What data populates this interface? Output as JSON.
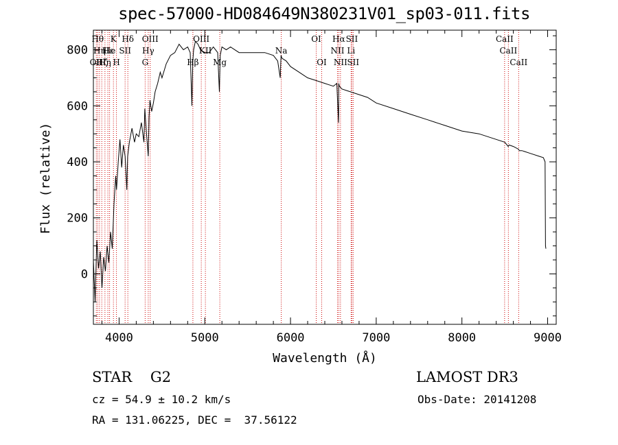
{
  "chart_data": {
    "type": "line",
    "title": "spec-57000-HD084649N380231V01_sp03-011.fits",
    "xlabel": "Wavelength (Å)",
    "ylabel": "Flux (relative)",
    "xlim": [
      3700,
      9100
    ],
    "ylim": [
      -180,
      870
    ],
    "xticks": [
      4000,
      5000,
      6000,
      7000,
      8000,
      9000
    ],
    "yticks": [
      0,
      200,
      400,
      600,
      800
    ],
    "grid": false,
    "series": [
      {
        "x": [
          3700,
          3720,
          3740,
          3760,
          3780,
          3800,
          3820,
          3840,
          3860,
          3880,
          3900,
          3920,
          3940,
          3960,
          3970,
          3990,
          4010,
          4030,
          4050,
          4070,
          4090,
          4100,
          4120,
          4150,
          4180,
          4200,
          4230,
          4260,
          4290,
          4300,
          4320,
          4340,
          4350,
          4360,
          4380,
          4400,
          4420,
          4450,
          4480,
          4500,
          4550,
          4600,
          4650,
          4700,
          4750,
          4800,
          4830,
          4850,
          4860,
          4870,
          4890,
          4920,
          4950,
          5000,
          5050,
          5100,
          5150,
          5170,
          5180,
          5200,
          5250,
          5300,
          5350,
          5400,
          5500,
          5600,
          5700,
          5800,
          5850,
          5880,
          5890,
          5900,
          5950,
          6000,
          6100,
          6200,
          6300,
          6400,
          6450,
          6500,
          6540,
          6560,
          6563,
          6570,
          6600,
          6700,
          6800,
          6900,
          7000,
          7200,
          7400,
          7600,
          7800,
          8000,
          8200,
          8400,
          8500,
          8540,
          8550,
          8600,
          8660,
          8670,
          8700,
          8800,
          8900,
          8950,
          8970,
          8975,
          8980
        ],
        "y": [
          50,
          -100,
          120,
          20,
          80,
          -50,
          60,
          10,
          100,
          40,
          150,
          90,
          250,
          350,
          300,
          400,
          480,
          380,
          460,
          420,
          300,
          420,
          470,
          520,
          470,
          500,
          490,
          540,
          470,
          590,
          500,
          420,
          560,
          620,
          580,
          610,
          650,
          680,
          720,
          700,
          750,
          780,
          790,
          820,
          800,
          810,
          790,
          600,
          760,
          800,
          830,
          820,
          800,
          790,
          790,
          810,
          790,
          650,
          780,
          810,
          800,
          810,
          800,
          790,
          790,
          790,
          790,
          780,
          760,
          700,
          780,
          770,
          760,
          740,
          720,
          700,
          690,
          680,
          675,
          670,
          680,
          540,
          680,
          670,
          660,
          650,
          640,
          630,
          610,
          590,
          570,
          550,
          530,
          510,
          500,
          480,
          470,
          455,
          460,
          455,
          445,
          440,
          440,
          430,
          420,
          415,
          400,
          100,
          90
        ]
      }
    ],
    "lines": [
      {
        "x": 3734,
        "label": "OII",
        "row": 3
      },
      {
        "x": 3750,
        "label": "Hθ",
        "row": 1
      },
      {
        "x": 3771,
        "label": "Hη",
        "row": 2
      },
      {
        "x": 3798,
        "label": "Hζ",
        "row": 3
      },
      {
        "x": 3835,
        "label": "Hη",
        "row": 3
      },
      {
        "x": 3869,
        "label": "Hε",
        "row": 2
      },
      {
        "x": 3889,
        "label": "He",
        "row": 2
      },
      {
        "x": 3934,
        "label": "K",
        "row": 1
      },
      {
        "x": 3969,
        "label": "H",
        "row": 3
      },
      {
        "x": 4070,
        "label": "SII",
        "row": 2
      },
      {
        "x": 4102,
        "label": "Hδ",
        "row": 1
      },
      {
        "x": 4304,
        "label": "G",
        "row": 3
      },
      {
        "x": 4340,
        "label": "Hγ",
        "row": 2
      },
      {
        "x": 4363,
        "label": "OIII",
        "row": 1
      },
      {
        "x": 4861,
        "label": "Hβ",
        "row": 3
      },
      {
        "x": 4959,
        "label": "OIII",
        "row": 1
      },
      {
        "x": 5007,
        "label": "KII",
        "row": 2
      },
      {
        "x": 5175,
        "label": "Mg",
        "row": 3
      },
      {
        "x": 5892,
        "label": "Na",
        "row": 2
      },
      {
        "x": 6300,
        "label": "OI",
        "row": 1
      },
      {
        "x": 6364,
        "label": "OI",
        "row": 3
      },
      {
        "x": 6548,
        "label": "NII",
        "row": 2
      },
      {
        "x": 6563,
        "label": "Hα",
        "row": 1
      },
      {
        "x": 6583,
        "label": "NII",
        "row": 3
      },
      {
        "x": 6707,
        "label": "Li",
        "row": 2
      },
      {
        "x": 6716,
        "label": "SII",
        "row": 1
      },
      {
        "x": 6731,
        "label": "SII",
        "row": 3
      },
      {
        "x": 8498,
        "label": "CaII",
        "row": 1
      },
      {
        "x": 8542,
        "label": "CaII",
        "row": 2
      },
      {
        "x": 8662,
        "label": "CaII",
        "row": 3
      }
    ]
  },
  "info": {
    "class": "STAR    G2",
    "survey": "LAMOST DR3",
    "cz": "cz = 54.9 ± 10.2 km/s",
    "obs_date": "Obs-Date: 20141208",
    "coords": "RA = 131.06225, DEC =  37.56122"
  },
  "colors": {
    "axis": "#000000",
    "spectrum": "#000000",
    "line_marker": "#cc0000"
  }
}
